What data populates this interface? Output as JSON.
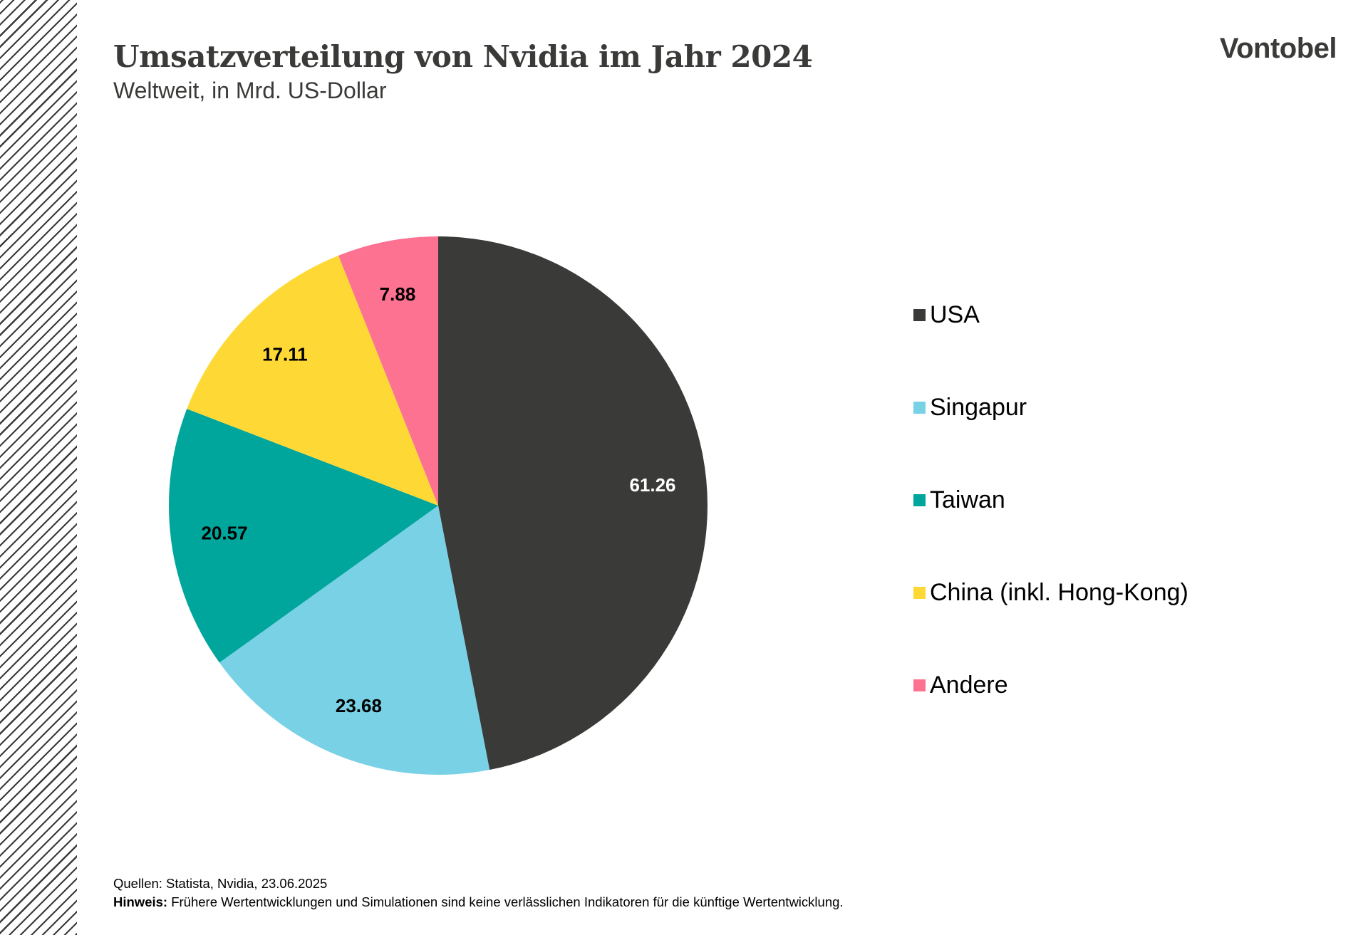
{
  "header": {
    "title": "Umsatzverteilung von Nvidia im Jahr 2024",
    "subtitle": "Weltweit, in Mrd. US-Dollar",
    "logo": "Vontobel"
  },
  "footer": {
    "sources": "Quellen: Statista, Nvidia, 23.06.2025",
    "note_label": "Hinweis:",
    "note_text": "Frühere Wertentwicklungen und Simulationen sind keine verlässlichen Indikatoren für die künftige Wertentwicklung."
  },
  "chart_data": {
    "type": "pie",
    "title": "Umsatzverteilung von Nvidia im Jahr 2024",
    "subtitle": "Weltweit, in Mrd. US-Dollar",
    "unit": "Mrd. US-Dollar",
    "start": "12 o'clock",
    "direction": "clockwise",
    "legend_position": "right",
    "slices": [
      {
        "label": "USA",
        "value": 61.26,
        "value_label": "61.26",
        "color": "#3a3b38",
        "label_color": "#ffffff"
      },
      {
        "label": "Singapur",
        "value": 23.68,
        "value_label": "23.68",
        "color": "#79d1e6",
        "label_color": "#000000"
      },
      {
        "label": "Taiwan",
        "value": 20.57,
        "value_label": "20.57",
        "color": "#00a59b",
        "label_color": "#000000"
      },
      {
        "label": "China (inkl. Hong-Kong)",
        "value": 17.11,
        "value_label": "17.11",
        "color": "#fed935",
        "label_color": "#000000"
      },
      {
        "label": "Andere",
        "value": 7.88,
        "value_label": "7.88",
        "color": "#fd7191",
        "label_color": "#000000"
      }
    ]
  }
}
